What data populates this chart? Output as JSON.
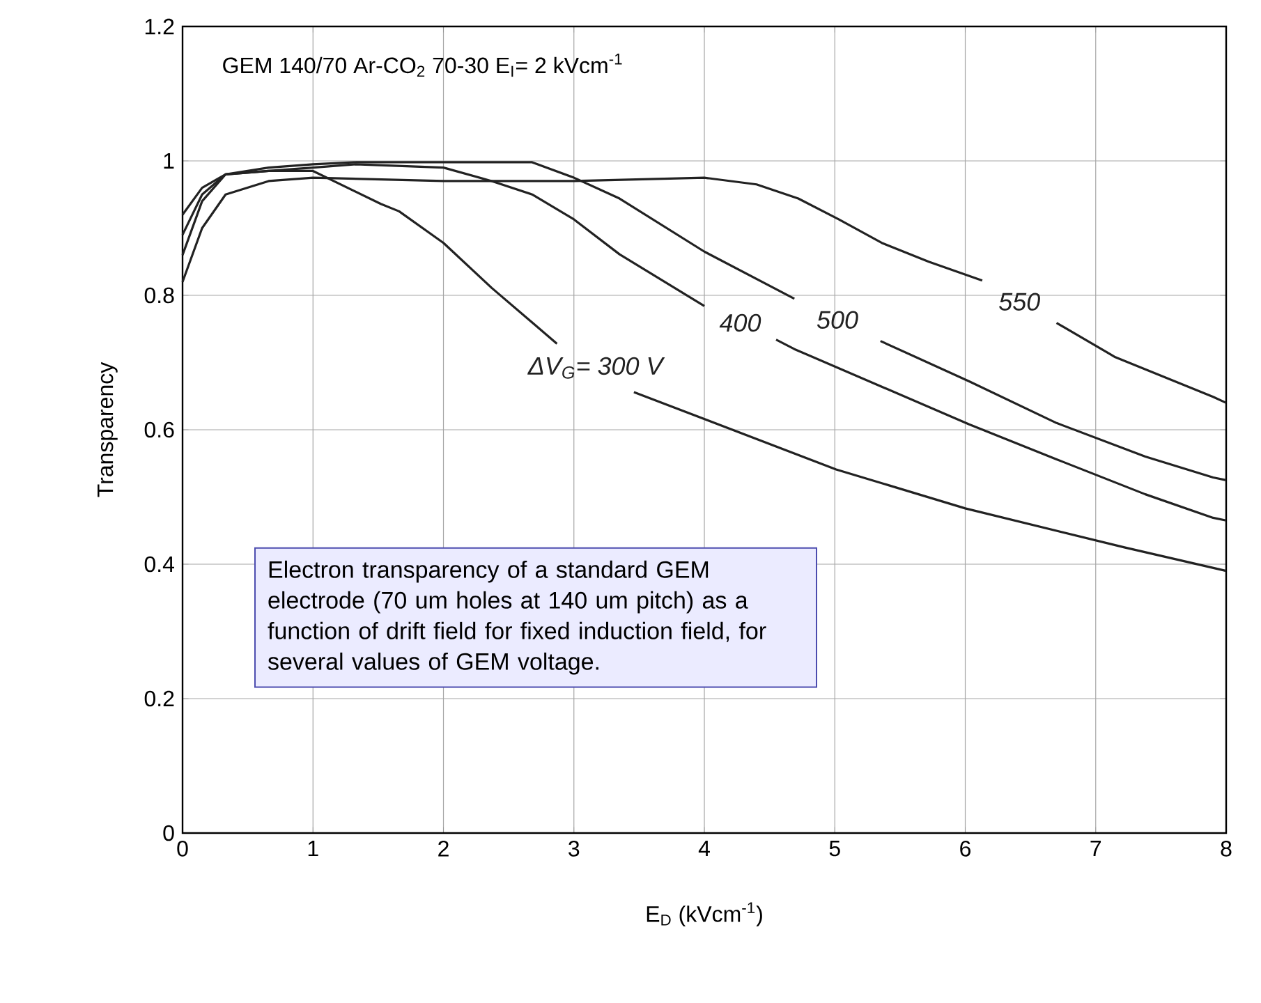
{
  "chart_data": {
    "type": "line",
    "title": "GEM 140/70   Ar-CO$_{2}$ 70-30 E$_{I}$= 2 kVcm$^{-1}$",
    "xlabel": "E$_{D}$ (kVcm$^{-1}$)",
    "ylabel": "Transparency",
    "annotations": [
      "Electron transparency of a standard GEM electrode (70 um holes at 140 um pitch) as a function of drift field for fixed induction field, for several values of GEM voltage."
    ],
    "series": [
      {
        "name": "ΔV$_{G}$= 300 V",
        "color": "#222222",
        "x": [
          0,
          0.15,
          0.33,
          0.66,
          1.0,
          1.52,
          1.66,
          2.0,
          2.37,
          2.87,
          3.1,
          3.46,
          5.01,
          6.0,
          7.22,
          8.0
        ],
        "values": [
          0.92,
          0.96,
          0.98,
          0.985,
          0.985,
          0.936,
          0.925,
          0.878,
          0.811,
          0.728,
          null,
          0.656,
          0.541,
          0.483,
          0.425,
          0.39
        ]
      },
      {
        "name": "400",
        "color": "#222222",
        "x": [
          0,
          0.15,
          0.33,
          0.66,
          1.0,
          1.33,
          2.0,
          2.37,
          2.68,
          3.0,
          3.35,
          4.0,
          4.3,
          4.55,
          4.69,
          5.36,
          6.03,
          6.7,
          7.38,
          7.9,
          8.0
        ],
        "values": [
          0.89,
          0.95,
          0.98,
          0.985,
          0.99,
          0.995,
          0.99,
          0.97,
          0.95,
          0.913,
          0.861,
          0.784,
          null,
          0.734,
          0.72,
          0.664,
          0.608,
          0.556,
          0.504,
          0.469,
          0.465
        ]
      },
      {
        "name": "500",
        "color": "#222222",
        "x": [
          0,
          0.15,
          0.33,
          0.66,
          1.0,
          1.33,
          1.66,
          2.0,
          2.68,
          3.0,
          3.35,
          4.0,
          4.69,
          5.0,
          5.35,
          6.03,
          6.7,
          7.38,
          7.9,
          8.0
        ],
        "values": [
          0.86,
          0.94,
          0.98,
          0.99,
          0.995,
          0.998,
          0.998,
          0.998,
          0.998,
          0.975,
          0.944,
          0.865,
          0.795,
          null,
          0.732,
          0.672,
          0.61,
          0.56,
          0.529,
          0.525
        ]
      },
      {
        "name": "550",
        "color": "#222222",
        "x": [
          0,
          0.15,
          0.33,
          0.66,
          1.0,
          2.0,
          3.0,
          4.0,
          4.4,
          4.72,
          5.03,
          5.36,
          5.72,
          6.13,
          6.4,
          6.7,
          7.15,
          7.9,
          8.0
        ],
        "values": [
          0.82,
          0.9,
          0.95,
          0.97,
          0.975,
          0.97,
          0.97,
          0.975,
          0.965,
          0.944,
          0.913,
          0.878,
          0.85,
          0.822,
          null,
          0.759,
          0.708,
          0.649,
          0.64
        ]
      }
    ],
    "xlim": [
      0,
      8
    ],
    "ylim": [
      0,
      1.2
    ],
    "xticks": [
      0,
      1,
      2,
      3,
      4,
      5,
      6,
      7,
      8
    ],
    "yticks": [
      0,
      0.2,
      0.4,
      0.6,
      0.8,
      1,
      1.2
    ],
    "grid": true,
    "marker": "none",
    "line_style": "solid"
  }
}
